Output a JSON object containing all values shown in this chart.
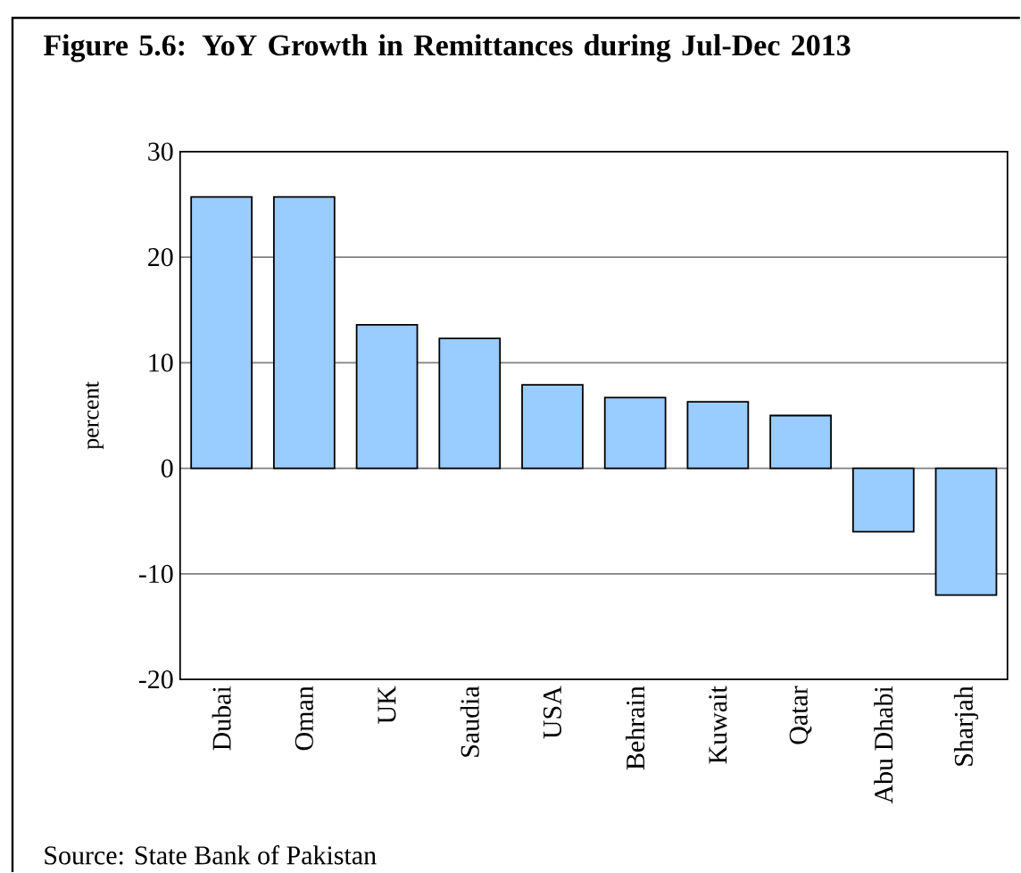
{
  "chart_data": {
    "type": "bar",
    "title": "Figure 5.6: YoY Growth in Remittances during Jul-Dec 2013",
    "ylabel": "percent",
    "categories": [
      "Dubai",
      "Oman",
      "UK",
      "Saudia",
      "USA",
      "Behrain",
      "Kuwait",
      "Qatar",
      "Abu Dhabi",
      "Sharjah"
    ],
    "values": [
      25.7,
      25.7,
      13.6,
      12.3,
      7.9,
      6.7,
      6.3,
      5.0,
      -6.0,
      -12.0
    ],
    "color": "#99ccff",
    "ylim": [
      -20,
      30
    ],
    "yticks": [
      -20,
      -10,
      0,
      10,
      20,
      30
    ],
    "grid": "y",
    "annotations": [
      "Source: State Bank of Pakistan"
    ]
  }
}
